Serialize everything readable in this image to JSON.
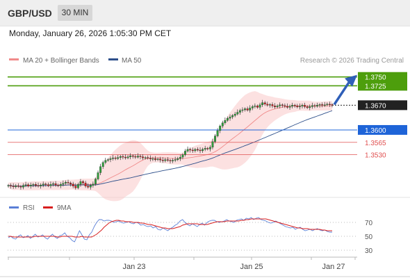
{
  "header": {
    "pair": "GBP/USD",
    "timeframe": "30 MIN",
    "datetime": "Monday, January 26, 2026 1:05:30 PM CET"
  },
  "legend": {
    "bollinger_label": "MA 20 + Bollinger Bands",
    "ma50_label": "MA 50",
    "credit": "Research © 2026 Trading Central",
    "rsi_label": "RSI",
    "ma9_label": "9MA"
  },
  "colors": {
    "candle_up": "#2f9e3c",
    "candle_down": "#d01f1f",
    "bollinger_band": "#f9c8c8",
    "ma20": "#f08a8a",
    "ma50": "#2d4f8a",
    "resistance": "#4d9e0c",
    "pivot": "#1e64d8",
    "support": "#e05050",
    "last_price": "#222222",
    "rsi": "#5a7fd6",
    "rsi_ma": "#d81e1e"
  },
  "chart_data": [
    {
      "type": "candlestick",
      "title": "",
      "x_ticks": [
        "Jan 23",
        "Jan 25",
        "Jan 27"
      ],
      "ylim": [
        1.3415,
        1.3775
      ],
      "price_levels": [
        {
          "label": "1.3750",
          "value": 1.375,
          "kind": "resistance"
        },
        {
          "label": "1.3725",
          "value": 1.3725,
          "kind": "resistance"
        },
        {
          "label": "1.3670",
          "value": 1.367,
          "kind": "last"
        },
        {
          "label": "1.3600",
          "value": 1.36,
          "kind": "pivot"
        },
        {
          "label": "1.3565",
          "value": 1.3565,
          "kind": "support"
        },
        {
          "label": "1.3530",
          "value": 1.353,
          "kind": "support"
        }
      ],
      "close_series": [
        1.3443,
        1.3441,
        1.3439,
        1.3442,
        1.344,
        1.3438,
        1.3443,
        1.3445,
        1.3441,
        1.3444,
        1.3446,
        1.3443,
        1.3441,
        1.3444,
        1.3447,
        1.3445,
        1.3442,
        1.3446,
        1.3448,
        1.3444,
        1.3442,
        1.3446,
        1.3449,
        1.3452,
        1.345,
        1.3447,
        1.3441,
        1.3436,
        1.3446,
        1.3454,
        1.345,
        1.3441,
        1.3438,
        1.3443,
        1.3447,
        1.3461,
        1.3479,
        1.3496,
        1.3508,
        1.3514,
        1.3516,
        1.3519,
        1.3521,
        1.3519,
        1.3522,
        1.3525,
        1.3523,
        1.3521,
        1.3524,
        1.3527,
        1.3525,
        1.3523,
        1.3526,
        1.3524,
        1.3521,
        1.3522,
        1.352,
        1.3518,
        1.3519,
        1.3516,
        1.3518,
        1.3515,
        1.3513,
        1.3516,
        1.3514,
        1.3512,
        1.3514,
        1.3516,
        1.3519,
        1.3523,
        1.353,
        1.354,
        1.3545,
        1.3543,
        1.3541,
        1.3545,
        1.3543,
        1.3541,
        1.3545,
        1.3548,
        1.3546,
        1.3551,
        1.3567,
        1.3583,
        1.3598,
        1.3611,
        1.362,
        1.3627,
        1.3633,
        1.3637,
        1.3641,
        1.3645,
        1.365,
        1.3655,
        1.3657,
        1.366,
        1.3656,
        1.3662,
        1.3666,
        1.3668,
        1.3664,
        1.3671,
        1.3677,
        1.3673,
        1.367,
        1.3672,
        1.3668,
        1.3665,
        1.3668,
        1.3671,
        1.3669,
        1.3667,
        1.3664,
        1.3667,
        1.367,
        1.3668,
        1.3665,
        1.3667,
        1.367,
        1.3666,
        1.3663,
        1.3666,
        1.3669,
        1.3667,
        1.367,
        1.3672,
        1.367,
        1.3671,
        1.3673,
        1.3672,
        1.367
      ],
      "forecast_target": 1.375,
      "indicators": [
        "MA 20 + Bollinger Bands",
        "MA 50"
      ]
    },
    {
      "type": "line",
      "title": "",
      "series": [
        {
          "name": "RSI",
          "values": [
            48,
            50,
            47,
            46,
            50,
            52,
            48,
            49,
            51,
            47,
            50,
            53,
            49,
            50,
            52,
            48,
            46,
            50,
            53,
            49,
            47,
            51,
            52,
            55,
            50,
            48,
            44,
            42,
            50,
            58,
            52,
            46,
            45,
            52,
            56,
            64,
            70,
            74,
            74,
            72,
            73,
            73,
            72,
            70,
            71,
            72,
            70,
            69,
            70,
            71,
            69,
            68,
            70,
            69,
            66,
            67,
            65,
            64,
            65,
            62,
            64,
            60,
            59,
            62,
            60,
            58,
            61,
            63,
            66,
            68,
            72,
            74,
            70,
            67,
            65,
            68,
            66,
            64,
            67,
            69,
            66,
            70,
            72,
            73,
            73,
            71,
            70,
            71,
            72,
            74,
            72,
            71,
            70,
            73,
            74,
            75,
            73,
            76,
            75,
            77,
            74,
            76,
            77,
            74,
            73,
            72,
            70,
            69,
            70,
            72,
            70,
            68,
            66,
            64,
            63,
            62,
            63,
            60,
            62,
            63,
            60,
            58,
            59,
            60,
            58,
            60,
            61,
            59,
            58,
            59,
            57,
            56,
            56
          ]
        },
        {
          "name": "9MA",
          "values": [
            50,
            50,
            49,
            49,
            49,
            49,
            49,
            49,
            49,
            49,
            49,
            50,
            50,
            50,
            50,
            50,
            50,
            50,
            50,
            50,
            49,
            49,
            50,
            50,
            50,
            50,
            50,
            49,
            49,
            49,
            50,
            49,
            49,
            49,
            49,
            51,
            53,
            56,
            59,
            63,
            66,
            69,
            71,
            72,
            73,
            73,
            72,
            72,
            71,
            71,
            71,
            70,
            70,
            70,
            69,
            69,
            68,
            67,
            67,
            66,
            65,
            64,
            63,
            62,
            62,
            61,
            61,
            61,
            62,
            63,
            64,
            66,
            67,
            68,
            68,
            68,
            68,
            68,
            67,
            67,
            67,
            67,
            68,
            69,
            70,
            71,
            71,
            71,
            71,
            72,
            72,
            72,
            72,
            72,
            72,
            73,
            73,
            74,
            74,
            75,
            75,
            75,
            75,
            75,
            75,
            75,
            74,
            73,
            72,
            71,
            70,
            69,
            68,
            67,
            66,
            65,
            64,
            63,
            62,
            62,
            61,
            61,
            61,
            60,
            60,
            60,
            60,
            60,
            59,
            59,
            58,
            58,
            58
          ]
        }
      ],
      "y_ticks": [
        "70",
        "50",
        "30"
      ],
      "ylim": [
        20,
        82
      ]
    }
  ]
}
